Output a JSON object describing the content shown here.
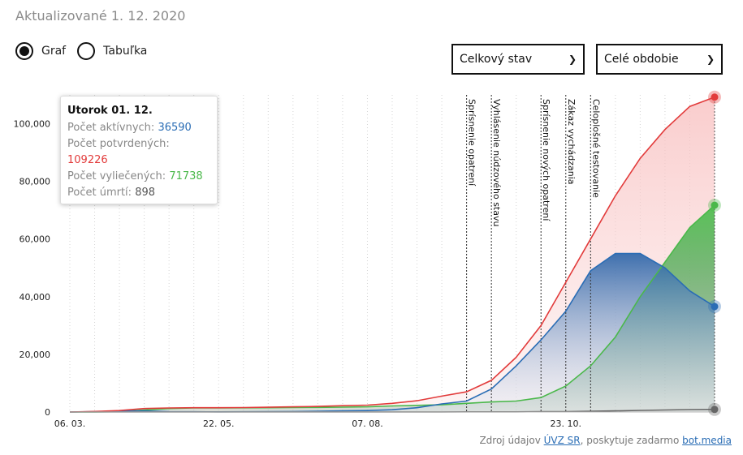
{
  "header": {
    "updated": "Aktualizované 1. 12. 2020"
  },
  "view_toggle": {
    "options": [
      {
        "label": "Graf",
        "selected": true
      },
      {
        "label": "Tabuľka",
        "selected": false
      }
    ]
  },
  "filters": {
    "state_select": "Celkový stav",
    "period_select": "Celé obdobie"
  },
  "tooltip": {
    "date": "Utorok 01. 12.",
    "active_label": "Počet aktívnych:",
    "active_value": "36590",
    "confirmed_label": "Počet potvrdených:",
    "confirmed_value": "109226",
    "recovered_label": "Počet vyliečených:",
    "recovered_value": "71738",
    "deaths_label": "Počet úmrtí:",
    "deaths_value": "898"
  },
  "source": {
    "prefix": "Zdroj údajov",
    "link1": "ÚVZ SR",
    "middle": ", poskytuje zadarmo",
    "link2": "bot.media"
  },
  "colors": {
    "confirmed": "#e23b3b",
    "active": "#2a6db5",
    "recovered": "#4ab84a",
    "deaths": "#666666"
  },
  "chart_data": {
    "type": "area",
    "x": [
      "06. 03.",
      "20. 03.",
      "03. 04.",
      "17. 04.",
      "01. 05.",
      "15. 05.",
      "22. 05.",
      "05. 06.",
      "19. 06.",
      "03. 07.",
      "17. 07.",
      "31. 07.",
      "07. 08.",
      "21. 08.",
      "04. 09.",
      "18. 09.",
      "25. 09.",
      "02. 10.",
      "09. 10.",
      "16. 10.",
      "23. 10.",
      "30. 10.",
      "06. 11.",
      "13. 11.",
      "20. 11.",
      "27. 11.",
      "01. 12."
    ],
    "series": [
      {
        "key": "confirmed",
        "values": [
          0,
          200,
          500,
          1200,
          1400,
          1500,
          1500,
          1550,
          1650,
          1800,
          1950,
          2200,
          2400,
          3000,
          3900,
          5500,
          7000,
          11000,
          19000,
          30000,
          45000,
          60000,
          75000,
          88000,
          98000,
          106000,
          109226
        ]
      },
      {
        "key": "active",
        "values": [
          0,
          150,
          300,
          400,
          150,
          80,
          60,
          80,
          120,
          180,
          250,
          400,
          500,
          800,
          1500,
          2800,
          3800,
          8000,
          16000,
          25000,
          35000,
          49000,
          55000,
          55000,
          50000,
          42000,
          36590
        ]
      },
      {
        "key": "recovered",
        "values": [
          0,
          0,
          100,
          700,
          1200,
          1400,
          1400,
          1450,
          1500,
          1550,
          1600,
          1700,
          1800,
          2100,
          2300,
          2500,
          3000,
          3500,
          3800,
          5000,
          9000,
          16000,
          26000,
          40000,
          52000,
          64000,
          71738
        ]
      },
      {
        "key": "deaths",
        "values": [
          0,
          0,
          5,
          20,
          25,
          28,
          28,
          28,
          28,
          29,
          30,
          32,
          33,
          35,
          38,
          40,
          45,
          55,
          70,
          100,
          150,
          250,
          400,
          550,
          700,
          850,
          898
        ]
      }
    ],
    "x_ticks": [
      "06. 03.",
      "22. 05.",
      "07. 08.",
      "23. 10."
    ],
    "y_ticks": [
      "0",
      "20,000",
      "40,000",
      "60,000",
      "80,000",
      "100,000"
    ],
    "ylim": [
      0,
      110000
    ],
    "events": [
      {
        "date": "25. 09.",
        "label": "Sprísnenie opatrení"
      },
      {
        "date": "02. 10.",
        "label": "Vyhlásenie núdzového stavu"
      },
      {
        "date": "16. 10.",
        "label": "Sprísnenie nových opatrení"
      },
      {
        "date": "23. 10.",
        "label": "Zákaz vychádzania"
      },
      {
        "date": "30. 10.",
        "label": "Celoplošné testovanie"
      }
    ]
  }
}
